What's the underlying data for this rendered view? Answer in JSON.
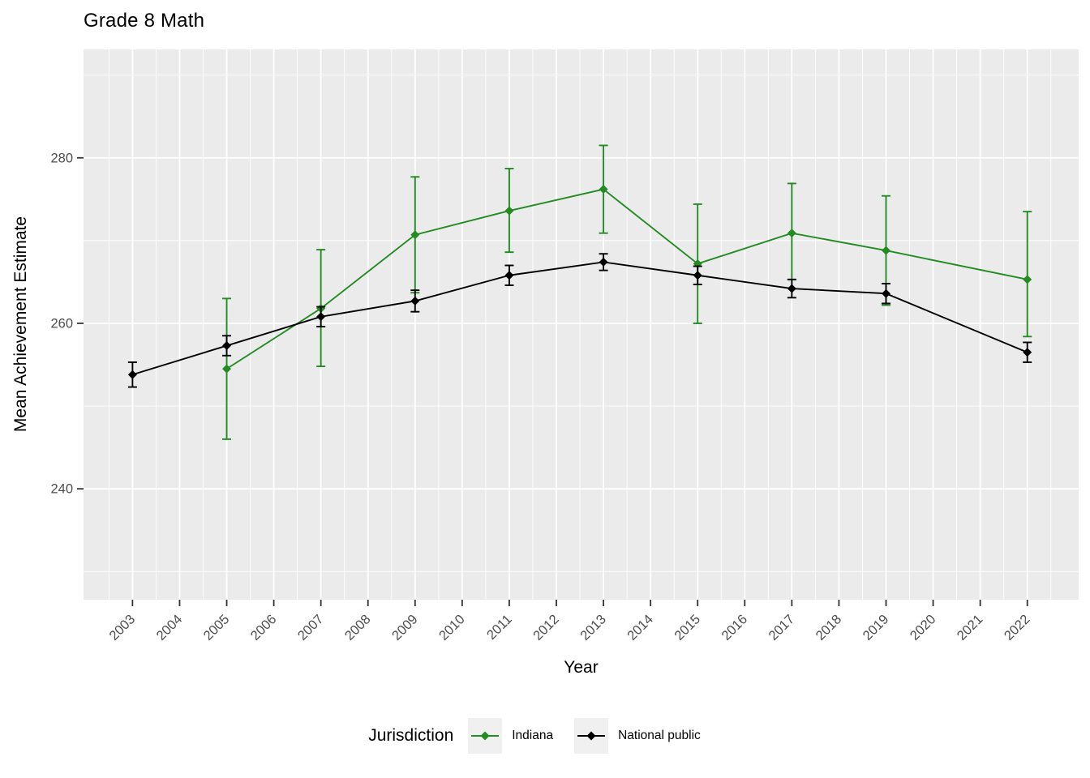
{
  "chart_data": {
    "type": "line",
    "title": "Grade 8 Math",
    "xlabel": "Year",
    "ylabel": "Mean Achievement Estimate",
    "legend_title": "Jurisdiction",
    "legend_position": "bottom",
    "grid": true,
    "panel_bg_color": "#EBEBEB",
    "grid_color": "#FFFFFF",
    "tick_mark_color": "#333333",
    "tick_label_color": "#4D4D4D",
    "legend_key_bg_color": "#F0F0F0",
    "x_ticks": [
      2003,
      2004,
      2005,
      2006,
      2007,
      2008,
      2009,
      2010,
      2011,
      2012,
      2013,
      2014,
      2015,
      2016,
      2017,
      2018,
      2019,
      2020,
      2021,
      2022
    ],
    "x_minor_ticks": [
      2002.5,
      2003.5,
      2004.5,
      2005.5,
      2006.5,
      2007.5,
      2008.5,
      2009.5,
      2010.5,
      2011.5,
      2012.5,
      2013.5,
      2014.5,
      2015.5,
      2016.5,
      2017.5,
      2018.5,
      2019.5,
      2020.5,
      2021.5,
      2022.5
    ],
    "y_ticks": [
      240,
      260,
      280
    ],
    "y_minor_ticks": [
      230,
      250,
      270,
      290
    ],
    "xlim": [
      2001.96,
      2023.09
    ],
    "ylim": [
      226.6,
      293.1
    ],
    "series": [
      {
        "name": "Indiana",
        "color": "#228B22",
        "points": [
          {
            "x": 2005,
            "y": 254.5,
            "lo": 246.0,
            "hi": 263.0
          },
          {
            "x": 2007,
            "y": 261.8,
            "lo": 254.8,
            "hi": 268.9
          },
          {
            "x": 2009,
            "y": 270.7,
            "lo": 263.7,
            "hi": 277.7
          },
          {
            "x": 2011,
            "y": 273.6,
            "lo": 268.6,
            "hi": 278.7
          },
          {
            "x": 2013,
            "y": 276.2,
            "lo": 270.9,
            "hi": 281.5
          },
          {
            "x": 2015,
            "y": 267.2,
            "lo": 260.0,
            "hi": 274.4
          },
          {
            "x": 2017,
            "y": 270.9,
            "lo": 265.3,
            "hi": 276.9
          },
          {
            "x": 2019,
            "y": 268.8,
            "lo": 262.2,
            "hi": 275.4
          },
          {
            "x": 2022,
            "y": 265.3,
            "lo": 258.4,
            "hi": 273.5
          }
        ]
      },
      {
        "name": "National public",
        "color": "#000000",
        "points": [
          {
            "x": 2003,
            "y": 253.8,
            "lo": 252.3,
            "hi": 255.3
          },
          {
            "x": 2005,
            "y": 257.3,
            "lo": 256.1,
            "hi": 258.5
          },
          {
            "x": 2007,
            "y": 260.8,
            "lo": 259.6,
            "hi": 262.0
          },
          {
            "x": 2009,
            "y": 262.7,
            "lo": 261.4,
            "hi": 264.0
          },
          {
            "x": 2011,
            "y": 265.8,
            "lo": 264.6,
            "hi": 267.0
          },
          {
            "x": 2013,
            "y": 267.4,
            "lo": 266.4,
            "hi": 268.4
          },
          {
            "x": 2015,
            "y": 265.8,
            "lo": 264.7,
            "hi": 266.9
          },
          {
            "x": 2017,
            "y": 264.2,
            "lo": 263.1,
            "hi": 265.3
          },
          {
            "x": 2019,
            "y": 263.6,
            "lo": 262.4,
            "hi": 264.8
          },
          {
            "x": 2022,
            "y": 256.5,
            "lo": 255.3,
            "hi": 257.7
          }
        ]
      }
    ]
  }
}
